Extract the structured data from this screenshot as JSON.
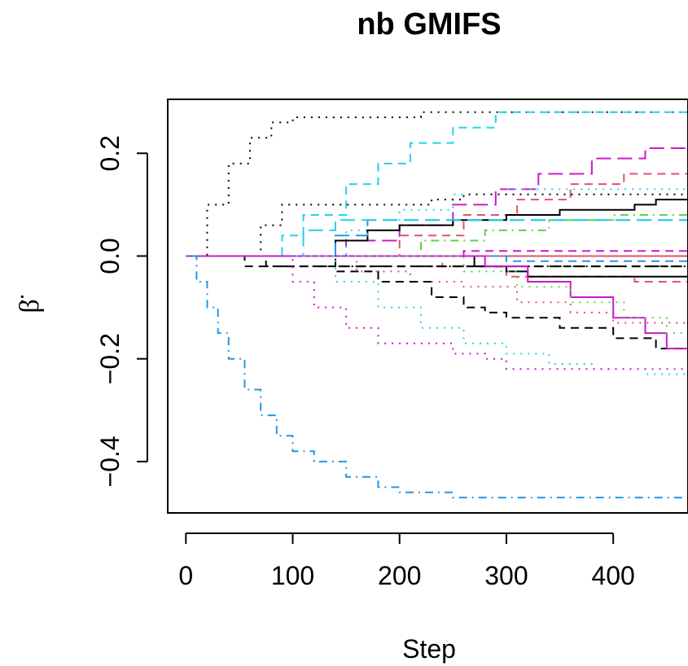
{
  "chart_data": {
    "type": "line",
    "title": "nb GMIFS",
    "xlabel": "Step",
    "ylabel": "β̈",
    "xlim": [
      -17,
      470
    ],
    "ylim": [
      -0.5,
      0.305
    ],
    "xticks": [
      "0",
      "100",
      "200",
      "300",
      "400"
    ],
    "yticks": [
      "−0.4",
      "−0.2",
      "0.0",
      "0.2"
    ],
    "xtick_values": [
      0,
      100,
      200,
      300,
      400
    ],
    "ytick_values": [
      -0.4,
      -0.2,
      0.0,
      0.2
    ],
    "grid": false,
    "legend": "none",
    "series": [
      {
        "color": "#000000",
        "dash": "dot",
        "points": [
          [
            0,
            0
          ],
          [
            20,
            0.1
          ],
          [
            40,
            0.18
          ],
          [
            60,
            0.23
          ],
          [
            80,
            0.26
          ],
          [
            100,
            0.27
          ],
          [
            200,
            0.27
          ],
          [
            220,
            0.28
          ],
          [
            470,
            0.28
          ]
        ]
      },
      {
        "color": "#22d3ee",
        "dash": "dash",
        "points": [
          [
            0,
            0
          ],
          [
            70,
            0
          ],
          [
            90,
            0.04
          ],
          [
            110,
            0.08
          ],
          [
            150,
            0.14
          ],
          [
            180,
            0.18
          ],
          [
            210,
            0.22
          ],
          [
            250,
            0.25
          ],
          [
            290,
            0.28
          ],
          [
            470,
            0.28
          ]
        ]
      },
      {
        "color": "#cc19cc",
        "dash": "longdash",
        "points": [
          [
            0,
            0
          ],
          [
            120,
            0
          ],
          [
            150,
            0.03
          ],
          [
            200,
            0.06
          ],
          [
            250,
            0.1
          ],
          [
            290,
            0.13
          ],
          [
            330,
            0.16
          ],
          [
            380,
            0.19
          ],
          [
            430,
            0.21
          ],
          [
            470,
            0.23
          ]
        ]
      },
      {
        "color": "#df536b",
        "dash": "dash",
        "points": [
          [
            0,
            0
          ],
          [
            150,
            0
          ],
          [
            200,
            0.04
          ],
          [
            260,
            0.08
          ],
          [
            310,
            0.11
          ],
          [
            360,
            0.14
          ],
          [
            410,
            0.16
          ],
          [
            470,
            0.17
          ]
        ]
      },
      {
        "color": "#22d3ee",
        "dash": "dot",
        "points": [
          [
            0,
            0
          ],
          [
            110,
            0
          ],
          [
            150,
            0.05
          ],
          [
            200,
            0.09
          ],
          [
            250,
            0.12
          ],
          [
            300,
            0.13
          ],
          [
            470,
            0.13
          ]
        ]
      },
      {
        "color": "#000000",
        "dash": "dot",
        "points": [
          [
            0,
            0
          ],
          [
            50,
            0
          ],
          [
            70,
            0.06
          ],
          [
            90,
            0.1
          ],
          [
            210,
            0.1
          ],
          [
            230,
            0.11
          ],
          [
            260,
            0.12
          ],
          [
            470,
            0.12
          ]
        ]
      },
      {
        "color": "#000000",
        "dash": "solid",
        "points": [
          [
            0,
            0
          ],
          [
            120,
            0
          ],
          [
            140,
            0.03
          ],
          [
            170,
            0.05
          ],
          [
            200,
            0.06
          ],
          [
            250,
            0.07
          ],
          [
            300,
            0.08
          ],
          [
            350,
            0.09
          ],
          [
            420,
            0.1
          ],
          [
            440,
            0.11
          ],
          [
            470,
            0.11
          ]
        ]
      },
      {
        "color": "#2297e6",
        "dash": "longdash",
        "points": [
          [
            0,
            0
          ],
          [
            100,
            0
          ],
          [
            140,
            0.04
          ],
          [
            170,
            0.07
          ],
          [
            470,
            0.07
          ]
        ]
      },
      {
        "color": "#61d04f",
        "dash": "dotdash",
        "points": [
          [
            0,
            0
          ],
          [
            180,
            0
          ],
          [
            220,
            0.03
          ],
          [
            280,
            0.05
          ],
          [
            340,
            0.07
          ],
          [
            400,
            0.08
          ],
          [
            470,
            0.09
          ]
        ]
      },
      {
        "color": "#22d3ee",
        "dash": "longdash",
        "points": [
          [
            0,
            0
          ],
          [
            80,
            0
          ],
          [
            110,
            0.05
          ],
          [
            140,
            0.07
          ],
          [
            470,
            0.07
          ]
        ]
      },
      {
        "color": "#df536b",
        "dash": "solid",
        "points": [
          [
            0,
            0
          ],
          [
            470,
            0.02
          ]
        ]
      },
      {
        "color": "#cc19cc",
        "dash": "dash",
        "points": [
          [
            0,
            0
          ],
          [
            200,
            0
          ],
          [
            260,
            0.01
          ],
          [
            470,
            0.02
          ]
        ]
      },
      {
        "color": "#2297e6",
        "dash": "dash",
        "points": [
          [
            0,
            0
          ],
          [
            250,
            0
          ],
          [
            300,
            -0.01
          ],
          [
            470,
            -0.02
          ]
        ]
      },
      {
        "color": "#df536b",
        "dash": "dash",
        "points": [
          [
            0,
            0
          ],
          [
            180,
            0
          ],
          [
            240,
            -0.02
          ],
          [
            300,
            -0.04
          ],
          [
            350,
            -0.04
          ],
          [
            420,
            -0.05
          ],
          [
            470,
            -0.06
          ]
        ]
      },
      {
        "color": "#000000",
        "dash": "solid",
        "points": [
          [
            0,
            0
          ],
          [
            250,
            0
          ],
          [
            270,
            -0.02
          ],
          [
            300,
            -0.03
          ],
          [
            320,
            -0.04
          ],
          [
            470,
            -0.04
          ]
        ]
      },
      {
        "color": "#000000",
        "dash": "dash",
        "points": [
          [
            0,
            0
          ],
          [
            50,
            0
          ],
          [
            55,
            -0.02
          ],
          [
            470,
            -0.02
          ]
        ]
      },
      {
        "color": "#000000",
        "dash": "dotdash",
        "points": [
          [
            0,
            0
          ],
          [
            70,
            0
          ],
          [
            75,
            -0.02
          ],
          [
            470,
            -0.02
          ]
        ]
      },
      {
        "color": "#df536b",
        "dash": "dot",
        "points": [
          [
            0,
            0
          ],
          [
            120,
            0
          ],
          [
            160,
            -0.03
          ],
          [
            210,
            -0.05
          ],
          [
            260,
            -0.06
          ],
          [
            310,
            -0.09
          ],
          [
            360,
            -0.11
          ],
          [
            400,
            -0.13
          ],
          [
            470,
            -0.14
          ]
        ]
      },
      {
        "color": "#000000",
        "dash": "dash",
        "points": [
          [
            0,
            0
          ],
          [
            115,
            0
          ],
          [
            140,
            -0.03
          ],
          [
            180,
            -0.05
          ],
          [
            230,
            -0.08
          ],
          [
            260,
            -0.1
          ],
          [
            280,
            -0.11
          ],
          [
            300,
            -0.12
          ],
          [
            350,
            -0.14
          ],
          [
            400,
            -0.16
          ],
          [
            440,
            -0.18
          ],
          [
            470,
            -0.2
          ]
        ]
      },
      {
        "color": "#cc19cc",
        "dash": "solid",
        "points": [
          [
            0,
            0
          ],
          [
            250,
            0
          ],
          [
            280,
            -0.02
          ],
          [
            320,
            -0.05
          ],
          [
            360,
            -0.08
          ],
          [
            400,
            -0.12
          ],
          [
            430,
            -0.15
          ],
          [
            450,
            -0.18
          ],
          [
            470,
            -0.19
          ]
        ]
      },
      {
        "color": "#61d04f",
        "dash": "dot",
        "points": [
          [
            0,
            0
          ],
          [
            200,
            0
          ],
          [
            260,
            -0.03
          ],
          [
            310,
            -0.06
          ],
          [
            360,
            -0.09
          ],
          [
            410,
            -0.12
          ],
          [
            450,
            -0.15
          ],
          [
            470,
            -0.16
          ]
        ]
      },
      {
        "color": "#22d3ee",
        "dash": "dot",
        "points": [
          [
            0,
            0
          ],
          [
            110,
            0
          ],
          [
            140,
            -0.05
          ],
          [
            180,
            -0.1
          ],
          [
            220,
            -0.14
          ],
          [
            260,
            -0.17
          ],
          [
            300,
            -0.19
          ],
          [
            340,
            -0.21
          ],
          [
            380,
            -0.22
          ],
          [
            430,
            -0.23
          ],
          [
            470,
            -0.23
          ]
        ]
      },
      {
        "color": "#cc19cc",
        "dash": "dot",
        "points": [
          [
            0,
            0
          ],
          [
            70,
            0
          ],
          [
            100,
            -0.05
          ],
          [
            120,
            -0.1
          ],
          [
            150,
            -0.14
          ],
          [
            180,
            -0.17
          ],
          [
            220,
            -0.17
          ],
          [
            250,
            -0.19
          ],
          [
            280,
            -0.2
          ],
          [
            300,
            -0.22
          ],
          [
            470,
            -0.22
          ]
        ]
      },
      {
        "color": "#2297e6",
        "dash": "dotdash",
        "points": [
          [
            0,
            0
          ],
          [
            10,
            -0.05
          ],
          [
            20,
            -0.1
          ],
          [
            30,
            -0.15
          ],
          [
            40,
            -0.2
          ],
          [
            55,
            -0.26
          ],
          [
            70,
            -0.31
          ],
          [
            85,
            -0.35
          ],
          [
            100,
            -0.38
          ],
          [
            120,
            -0.4
          ],
          [
            150,
            -0.43
          ],
          [
            180,
            -0.45
          ],
          [
            200,
            -0.46
          ],
          [
            250,
            -0.47
          ],
          [
            470,
            -0.47
          ]
        ]
      }
    ]
  }
}
